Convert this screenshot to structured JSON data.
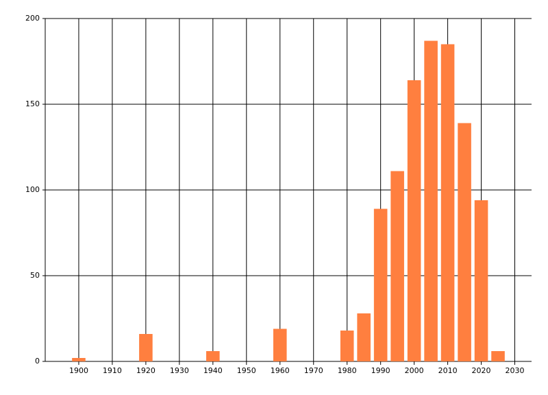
{
  "chart_data": {
    "type": "bar",
    "x": [
      1900,
      1920,
      1940,
      1960,
      1980,
      1985,
      1990,
      1995,
      2000,
      2005,
      2010,
      2015,
      2020,
      2025
    ],
    "values": [
      2,
      16,
      6,
      19,
      18,
      28,
      89,
      111,
      164,
      187,
      185,
      139,
      94,
      6
    ],
    "color": "#ff7f3f",
    "xlim": [
      1890,
      2035
    ],
    "xticks": [
      1900,
      1910,
      1920,
      1930,
      1940,
      1950,
      1960,
      1970,
      1980,
      1990,
      2000,
      2010,
      2020,
      2030
    ],
    "ylim": [
      0,
      200
    ],
    "yticks": [
      0,
      50,
      100,
      150,
      200
    ],
    "grid": true
  }
}
